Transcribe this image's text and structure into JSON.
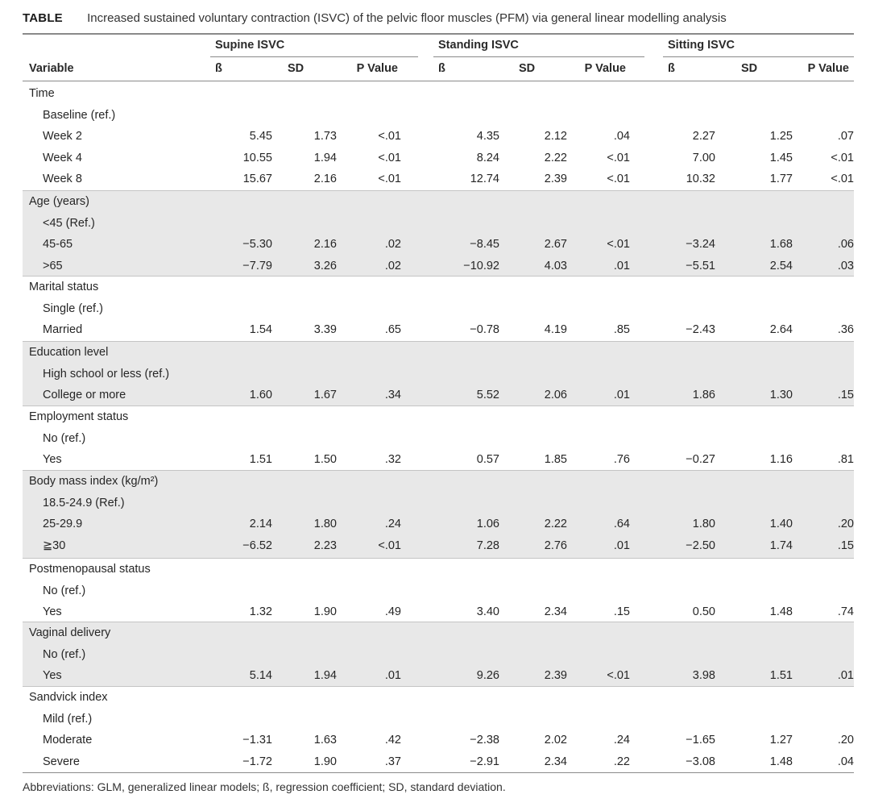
{
  "table": {
    "caption_label": "TABLE",
    "caption_text": "Increased sustained voluntary contraction (ISVC) of the pelvic floor muscles (PFM) via general linear modelling analysis",
    "groups": [
      "Supine ISVC",
      "Standing ISVC",
      "Sitting ISVC"
    ],
    "columns": [
      "Variable",
      "ß",
      "SD",
      "P Value",
      "ß",
      "SD",
      "P Value",
      "ß",
      "SD",
      "P Value"
    ],
    "sections": [
      {
        "title": "Time",
        "rows": [
          {
            "label": "Baseline (ref.)",
            "cells": [
              "",
              "",
              "",
              "",
              "",
              "",
              "",
              "",
              ""
            ]
          },
          {
            "label": "Week 2",
            "cells": [
              "5.45",
              "1.73",
              "<.01",
              "4.35",
              "2.12",
              ".04",
              "2.27",
              "1.25",
              ".07"
            ]
          },
          {
            "label": "Week 4",
            "cells": [
              "10.55",
              "1.94",
              "<.01",
              "8.24",
              "2.22",
              "<.01",
              "7.00",
              "1.45",
              "<.01"
            ]
          },
          {
            "label": "Week 8",
            "cells": [
              "15.67",
              "2.16",
              "<.01",
              "12.74",
              "2.39",
              "<.01",
              "10.32",
              "1.77",
              "<.01"
            ]
          }
        ]
      },
      {
        "title": "Age (years)",
        "rows": [
          {
            "label": "<45 (Ref.)",
            "cells": [
              "",
              "",
              "",
              "",
              "",
              "",
              "",
              "",
              ""
            ]
          },
          {
            "label": "45-65",
            "cells": [
              "−5.30",
              "2.16",
              ".02",
              "−8.45",
              "2.67",
              "<.01",
              "−3.24",
              "1.68",
              ".06"
            ]
          },
          {
            "label": ">65",
            "cells": [
              "−7.79",
              "3.26",
              ".02",
              "−10.92",
              "4.03",
              ".01",
              "−5.51",
              "2.54",
              ".03"
            ]
          }
        ]
      },
      {
        "title": "Marital status",
        "rows": [
          {
            "label": "Single (ref.)",
            "cells": [
              "",
              "",
              "",
              "",
              "",
              "",
              "",
              "",
              ""
            ]
          },
          {
            "label": "Married",
            "cells": [
              "1.54",
              "3.39",
              ".65",
              "−0.78",
              "4.19",
              ".85",
              "−2.43",
              "2.64",
              ".36"
            ]
          }
        ]
      },
      {
        "title": "Education level",
        "rows": [
          {
            "label": "High school or less (ref.)",
            "cells": [
              "",
              "",
              "",
              "",
              "",
              "",
              "",
              "",
              ""
            ]
          },
          {
            "label": "College or more",
            "cells": [
              "1.60",
              "1.67",
              ".34",
              "5.52",
              "2.06",
              ".01",
              "1.86",
              "1.30",
              ".15"
            ]
          }
        ]
      },
      {
        "title": "Employment status",
        "rows": [
          {
            "label": "No (ref.)",
            "cells": [
              "",
              "",
              "",
              "",
              "",
              "",
              "",
              "",
              ""
            ]
          },
          {
            "label": "Yes",
            "cells": [
              "1.51",
              "1.50",
              ".32",
              "0.57",
              "1.85",
              ".76",
              "−0.27",
              "1.16",
              ".81"
            ]
          }
        ]
      },
      {
        "title": "Body mass index (kg/m²)",
        "rows": [
          {
            "label": "18.5-24.9 (Ref.)",
            "cells": [
              "",
              "",
              "",
              "",
              "",
              "",
              "",
              "",
              ""
            ]
          },
          {
            "label": "25-29.9",
            "cells": [
              "2.14",
              "1.80",
              ".24",
              "1.06",
              "2.22",
              ".64",
              "1.80",
              "1.40",
              ".20"
            ]
          },
          {
            "label": "≧30",
            "cells": [
              "−6.52",
              "2.23",
              "<.01",
              "7.28",
              "2.76",
              ".01",
              "−2.50",
              "1.74",
              ".15"
            ]
          }
        ]
      },
      {
        "title": "Postmenopausal status",
        "rows": [
          {
            "label": "No (ref.)",
            "cells": [
              "",
              "",
              "",
              "",
              "",
              "",
              "",
              "",
              ""
            ]
          },
          {
            "label": "Yes",
            "cells": [
              "1.32",
              "1.90",
              ".49",
              "3.40",
              "2.34",
              ".15",
              "0.50",
              "1.48",
              ".74"
            ]
          }
        ]
      },
      {
        "title": "Vaginal delivery",
        "rows": [
          {
            "label": "No (ref.)",
            "cells": [
              "",
              "",
              "",
              "",
              "",
              "",
              "",
              "",
              ""
            ]
          },
          {
            "label": "Yes",
            "cells": [
              "5.14",
              "1.94",
              ".01",
              "9.26",
              "2.39",
              "<.01",
              "3.98",
              "1.51",
              ".01"
            ]
          }
        ]
      },
      {
        "title": "Sandvick index",
        "rows": [
          {
            "label": "Mild (ref.)",
            "cells": [
              "",
              "",
              "",
              "",
              "",
              "",
              "",
              "",
              ""
            ]
          },
          {
            "label": "Moderate",
            "cells": [
              "−1.31",
              "1.63",
              ".42",
              "−2.38",
              "2.02",
              ".24",
              "−1.65",
              "1.27",
              ".20"
            ]
          },
          {
            "label": "Severe",
            "cells": [
              "−1.72",
              "1.90",
              ".37",
              "−2.91",
              "2.34",
              ".22",
              "−3.08",
              "1.48",
              ".04"
            ]
          }
        ]
      }
    ],
    "footnote": "Abbreviations: GLM, generalized linear models; ß, regression coefficient; SD, standard deviation."
  },
  "colors": {
    "shade": "#e8e8e8",
    "rule": "#8a8a8a",
    "text": "#262626"
  }
}
